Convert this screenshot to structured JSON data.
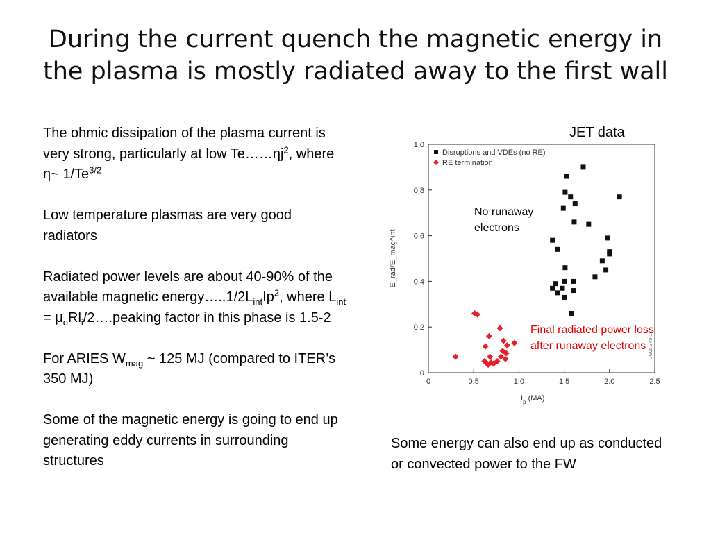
{
  "slide": {
    "title_lines": [
      "During the current quench the magnetic energy in",
      "the plasma is mostly radiated away to the first wall"
    ],
    "p1": {
      "text": "The ohmic dissipation of the plasma current is very strong, particularly at low Te……ηj",
      "sup1": "2",
      "mid": ", where η~ 1/Te",
      "sup2": "3/2"
    },
    "p2": "Low temperature plasmas are very good radiators",
    "p3": {
      "a": "Radiated power levels are about 40-90% of the available magnetic energy…..1/2L",
      "sub1": "int",
      "b": "Ip",
      "sup1": "2",
      "c": ", where L",
      "sub2": "int",
      "d": " = μ",
      "sub3": "o",
      "e": "Rl",
      "sub4": "i",
      "f": "/2….peaking factor in this phase is 1.5-2"
    },
    "p4": {
      "a": "For ARIES W",
      "sub1": "mag",
      "b": " ~ 125 MJ (compared to ITER’s 350 MJ)"
    },
    "p5": "Some of the magnetic energy is going to end up generating eddy currents in surrounding structures",
    "jet_label": "JET data",
    "annotation_black": [
      "No runaway",
      "electrons"
    ],
    "annotation_red": [
      "Final radiated power loss",
      "after runaway electrons"
    ],
    "bottom_note": "Some energy can also end up as conducted or convected power to the FW"
  },
  "colors": {
    "black_series": "#111111",
    "red_series": "#e8202a",
    "axis": "#333333",
    "red_text": "#e00000"
  },
  "chart_data": {
    "type": "scatter",
    "xlabel": "I_p (MA)",
    "ylabel": "E_rad/E_mag^int",
    "xlim": [
      0,
      2.5
    ],
    "ylim": [
      0,
      1.0
    ],
    "xticks": [
      0,
      0.5,
      1.0,
      1.5,
      2.0,
      2.5
    ],
    "xtick_labels": [
      "0",
      "0.5",
      "1.0",
      "1.5",
      "2.0",
      "2.5"
    ],
    "yticks": [
      0,
      0.2,
      0.4,
      0.6,
      0.8,
      1.0
    ],
    "ytick_labels": [
      "0",
      "0.2",
      "0.4",
      "0.6",
      "0.8",
      "1.0"
    ],
    "legend_position": "top-left",
    "side_label": "JG05.340-1c",
    "series": [
      {
        "name": "Disruptions and VDEs (no RE)",
        "marker": "square",
        "points": [
          [
            1.53,
            0.86
          ],
          [
            1.71,
            0.9
          ],
          [
            2.11,
            0.77
          ],
          [
            1.51,
            0.79
          ],
          [
            1.57,
            0.77
          ],
          [
            1.62,
            0.74
          ],
          [
            1.49,
            0.72
          ],
          [
            1.61,
            0.66
          ],
          [
            1.77,
            0.65
          ],
          [
            1.37,
            0.58
          ],
          [
            1.43,
            0.54
          ],
          [
            1.98,
            0.59
          ],
          [
            1.51,
            0.46
          ],
          [
            2.0,
            0.53
          ],
          [
            2.0,
            0.52
          ],
          [
            1.92,
            0.49
          ],
          [
            1.96,
            0.45
          ],
          [
            1.84,
            0.42
          ],
          [
            1.4,
            0.39
          ],
          [
            1.5,
            0.4
          ],
          [
            1.6,
            0.4
          ],
          [
            1.37,
            0.37
          ],
          [
            1.43,
            0.35
          ],
          [
            1.48,
            0.37
          ],
          [
            1.6,
            0.36
          ],
          [
            1.5,
            0.33
          ],
          [
            1.58,
            0.26
          ]
        ]
      },
      {
        "name": "RE termination",
        "marker": "diamond",
        "points": [
          [
            0.51,
            0.26
          ],
          [
            0.54,
            0.255
          ],
          [
            0.3,
            0.07
          ],
          [
            0.79,
            0.195
          ],
          [
            0.67,
            0.16
          ],
          [
            0.83,
            0.14
          ],
          [
            0.87,
            0.12
          ],
          [
            0.95,
            0.13
          ],
          [
            0.63,
            0.115
          ],
          [
            0.82,
            0.095
          ],
          [
            0.86,
            0.085
          ],
          [
            0.8,
            0.07
          ],
          [
            0.85,
            0.06
          ],
          [
            0.76,
            0.05
          ],
          [
            0.68,
            0.07
          ],
          [
            0.62,
            0.05
          ],
          [
            0.65,
            0.04
          ],
          [
            0.69,
            0.045
          ],
          [
            0.72,
            0.04
          ],
          [
            0.66,
            0.035
          ]
        ]
      }
    ]
  }
}
